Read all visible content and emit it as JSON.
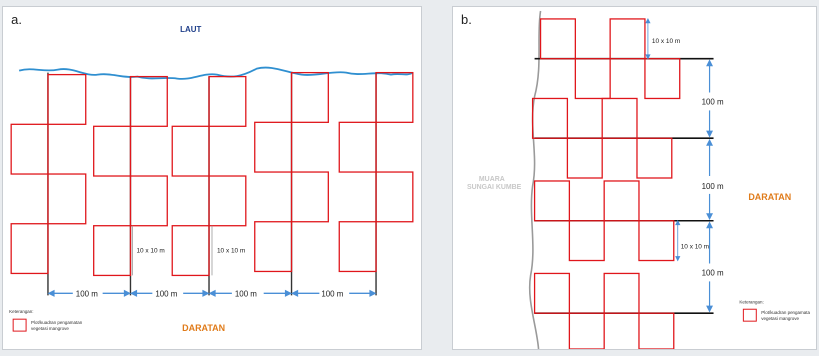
{
  "panel_a": {
    "label": "a.",
    "sea_label": "LAUT",
    "land_label": "DARATAN",
    "plot_size_label": "10 x 10 m",
    "distance_label": "100 m",
    "legend": {
      "heading": "Keterangan:",
      "line1": "Plot/kuadran pengamatan",
      "line2": "vegetasi mangrove"
    }
  },
  "panel_b": {
    "label": "b.",
    "river_line1": "MUARA",
    "river_line2": "SUNGAI KUMBE",
    "land_label": "DARATAN",
    "plot_size_label": "10 x 10 m",
    "distance_label": "100 m",
    "legend": {
      "heading": "Keterangan:",
      "line1": "Plot/kuadran pengamata",
      "line2": "vegetasi mangrove"
    }
  },
  "colors": {
    "plot": "#e0161b",
    "coast": "#2f8fd0",
    "arrow": "#4a8fd6",
    "line": "#111111",
    "river": "#9a9a9a",
    "sea_text": "#1f3f8a",
    "land_text": "#e07b1a"
  }
}
